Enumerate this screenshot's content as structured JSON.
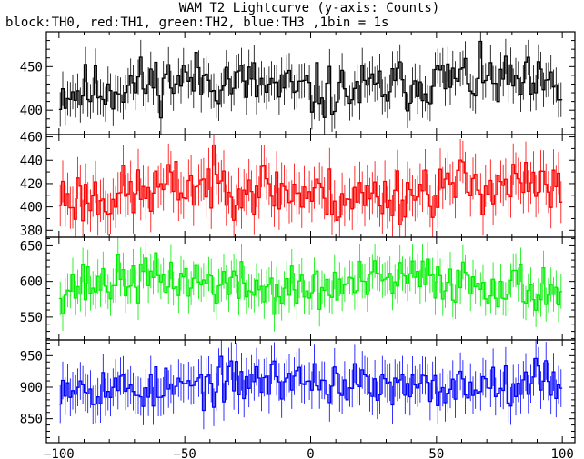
{
  "figure": {
    "title": "WAM T2 Lightcurve (y-axis: Counts)",
    "subtitle": "block:TH0, red:TH1, green:TH2, blue:TH3 ,1bin = 1s"
  },
  "chart_data": [
    {
      "type": "line",
      "series": [
        {
          "name": "TH0",
          "color": "#000000",
          "amplitude": 22,
          "seed": 11,
          "error_bar": 20
        }
      ],
      "x_range": [
        -100,
        100
      ],
      "xlim": [
        -105,
        105
      ],
      "ylim": [
        372,
        490
      ],
      "yticks": [
        400,
        450
      ],
      "baseline": 428,
      "xticks": [
        -100,
        -50,
        0,
        50,
        100
      ],
      "show_xtick_labels": false,
      "grid": false
    },
    {
      "type": "line",
      "series": [
        {
          "name": "TH1",
          "color": "#ff0000",
          "amplitude": 17,
          "seed": 23,
          "error_bar": 18
        }
      ],
      "x_range": [
        -100,
        100
      ],
      "xlim": [
        -105,
        105
      ],
      "ylim": [
        374,
        462
      ],
      "yticks": [
        380,
        400,
        420,
        440,
        460
      ],
      "baseline": 414,
      "xticks": [
        -100,
        -50,
        0,
        50,
        100
      ],
      "show_xtick_labels": false,
      "grid": false
    },
    {
      "type": "line",
      "series": [
        {
          "name": "TH2",
          "color": "#00ee00",
          "amplitude": 23,
          "seed": 37,
          "error_bar": 24
        }
      ],
      "x_range": [
        -100,
        100
      ],
      "xlim": [
        -105,
        105
      ],
      "ylim": [
        518,
        662
      ],
      "yticks": [
        550,
        600,
        650
      ],
      "baseline": 596,
      "xticks": [
        -100,
        -50,
        0,
        50,
        100
      ],
      "show_xtick_labels": false,
      "grid": false
    },
    {
      "type": "line",
      "series": [
        {
          "name": "TH3",
          "color": "#0000ff",
          "amplitude": 24,
          "seed": 53,
          "error_bar": 30
        }
      ],
      "x_range": [
        -100,
        100
      ],
      "xlim": [
        -105,
        105
      ],
      "ylim": [
        812,
        975
      ],
      "yticks": [
        850,
        900,
        950
      ],
      "baseline": 905,
      "xticks": [
        -100,
        -50,
        0,
        50,
        100
      ],
      "show_xtick_labels": true,
      "xtick_labels": [
        "−100",
        "−50",
        "0",
        "50",
        "100"
      ],
      "grid": false
    }
  ]
}
